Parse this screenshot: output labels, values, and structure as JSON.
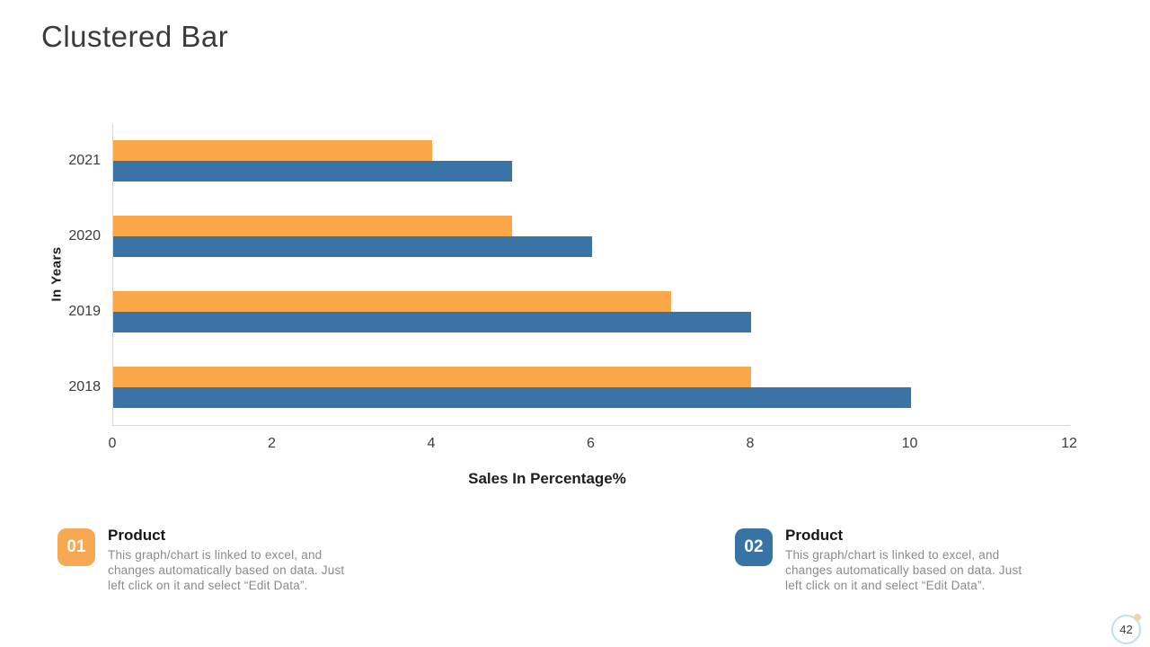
{
  "slide": {
    "title": "Clustered Bar",
    "page_number": "42"
  },
  "chart_data": {
    "type": "bar",
    "orientation": "horizontal",
    "categories": [
      "2021",
      "2020",
      "2019",
      "2018"
    ],
    "series": [
      {
        "name": "Product 01",
        "color": "#FAA747",
        "values": [
          4,
          5,
          7,
          8
        ]
      },
      {
        "name": "Product 02",
        "color": "#3A73A6",
        "values": [
          5,
          6,
          8,
          10
        ]
      }
    ],
    "title": "Clustered Bar",
    "xlabel": "Sales In Percentage%",
    "ylabel": "In Years",
    "xlim": [
      0,
      12
    ],
    "xticks": [
      0,
      2,
      4,
      6,
      8,
      10,
      12
    ],
    "grid": false,
    "legend_position": "none"
  },
  "callouts": [
    {
      "number": "01",
      "color": "#F6A852",
      "title": "Product",
      "description": "This graph/chart is linked to excel, and changes automatically based on data. Just left click on it and select “Edit Data”."
    },
    {
      "number": "02",
      "color": "#3873A5",
      "title": "Product",
      "description": "This graph/chart is linked to excel, and changes automatically based on data. Just left click on it and select “Edit Data”."
    }
  ]
}
